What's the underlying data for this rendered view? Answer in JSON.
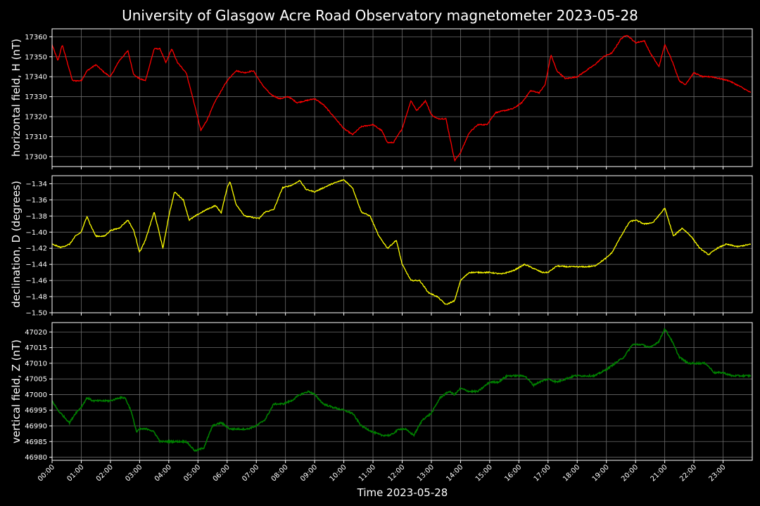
{
  "figure": {
    "title": "University of Glasgow Acre Road Observatory magnetometer 2023-05-28",
    "background": "#000000",
    "text_color": "#ffffff",
    "grid_color": "#6a6a6a"
  },
  "chart_data": [
    {
      "type": "line",
      "id": "h",
      "ylabel": "horizontal field, H (nT)",
      "color": "#ff0000",
      "ylim": [
        17295,
        17364
      ],
      "yticks": [
        17300,
        17310,
        17320,
        17330,
        17340,
        17350,
        17360
      ],
      "ytick_labels": [
        "17300",
        "17310",
        "17320",
        "17330",
        "17340",
        "17350",
        "17360"
      ],
      "x_hours": [
        0,
        0.2,
        0.35,
        0.7,
        1.0,
        1.2,
        1.5,
        1.8,
        2.0,
        2.3,
        2.6,
        2.8,
        3.0,
        3.2,
        3.5,
        3.7,
        3.9,
        4.1,
        4.3,
        4.6,
        4.9,
        5.1,
        5.3,
        5.6,
        6.0,
        6.3,
        6.6,
        6.9,
        7.2,
        7.5,
        7.8,
        8.1,
        8.4,
        8.7,
        9.0,
        9.3,
        9.6,
        10.0,
        10.3,
        10.6,
        11.0,
        11.3,
        11.5,
        11.7,
        12.0,
        12.3,
        12.5,
        12.8,
        13.0,
        13.2,
        13.5,
        13.8,
        14.0,
        14.3,
        14.6,
        14.9,
        15.2,
        15.5,
        15.8,
        16.1,
        16.4,
        16.7,
        16.9,
        17.1,
        17.3,
        17.6,
        18.0,
        18.3,
        18.6,
        18.9,
        19.2,
        19.5,
        19.7,
        20.0,
        20.3,
        20.5,
        20.8,
        21.0,
        21.2,
        21.5,
        21.7,
        22.0,
        22.3,
        22.6,
        22.9,
        23.2,
        23.6,
        23.95
      ],
      "values": [
        17356,
        17348,
        17356,
        17338,
        17338,
        17343,
        17346,
        17342,
        17340,
        17348,
        17353,
        17341,
        17339,
        17338,
        17354,
        17354,
        17347,
        17354,
        17347,
        17342,
        17325,
        17313,
        17318,
        17328,
        17338,
        17343,
        17342,
        17343,
        17336,
        17331,
        17329,
        17330,
        17327,
        17328,
        17329,
        17326,
        17321,
        17314,
        17311,
        17315,
        17316,
        17313,
        17307,
        17307,
        17314,
        17328,
        17323,
        17328,
        17321,
        17319,
        17319,
        17298,
        17302,
        17312,
        17316,
        17316,
        17322,
        17323,
        17324,
        17327,
        17333,
        17332,
        17336,
        17351,
        17343,
        17339,
        17340,
        17343,
        17346,
        17350,
        17352,
        17359,
        17361,
        17357,
        17358,
        17352,
        17345,
        17356,
        17350,
        17338,
        17336,
        17342,
        17340,
        17340,
        17339,
        17338,
        17335,
        17332
      ]
    },
    {
      "type": "line",
      "id": "d",
      "ylabel": "declination, D (degrees)",
      "color": "#ffff00",
      "ylim": [
        -1.5,
        -1.33
      ],
      "yticks": [
        -1.5,
        -1.48,
        -1.46,
        -1.44,
        -1.42,
        -1.4,
        -1.38,
        -1.36,
        -1.34
      ],
      "ytick_labels": [
        "−1.50",
        "−1.48",
        "−1.46",
        "−1.44",
        "−1.42",
        "−1.40",
        "−1.38",
        "−1.36",
        "−1.34"
      ],
      "x_hours": [
        0,
        0.3,
        0.6,
        0.8,
        1.0,
        1.2,
        1.3,
        1.5,
        1.8,
        2.0,
        2.3,
        2.6,
        2.8,
        3.0,
        3.2,
        3.5,
        3.6,
        3.8,
        4.0,
        4.2,
        4.5,
        4.7,
        5.0,
        5.3,
        5.6,
        5.8,
        6.0,
        6.1,
        6.3,
        6.6,
        6.9,
        7.1,
        7.3,
        7.6,
        7.9,
        8.2,
        8.5,
        8.7,
        9.0,
        9.3,
        9.6,
        10.0,
        10.3,
        10.6,
        10.9,
        11.2,
        11.5,
        11.8,
        12.0,
        12.3,
        12.6,
        12.9,
        13.2,
        13.5,
        13.8,
        14.0,
        14.3,
        14.6,
        15.0,
        15.4,
        15.8,
        16.2,
        16.5,
        16.8,
        17.0,
        17.3,
        17.7,
        18.0,
        18.3,
        18.6,
        19.0,
        19.2,
        19.5,
        19.8,
        20.0,
        20.3,
        20.6,
        20.9,
        21.0,
        21.3,
        21.6,
        21.9,
        22.2,
        22.5,
        22.8,
        23.1,
        23.5,
        23.95
      ],
      "values": [
        -1.415,
        -1.419,
        -1.415,
        -1.405,
        -1.4,
        -1.38,
        -1.39,
        -1.405,
        -1.405,
        -1.398,
        -1.395,
        -1.385,
        -1.398,
        -1.425,
        -1.41,
        -1.375,
        -1.39,
        -1.42,
        -1.38,
        -1.35,
        -1.36,
        -1.385,
        -1.378,
        -1.372,
        -1.367,
        -1.376,
        -1.345,
        -1.337,
        -1.365,
        -1.38,
        -1.382,
        -1.383,
        -1.375,
        -1.372,
        -1.345,
        -1.342,
        -1.336,
        -1.347,
        -1.35,
        -1.345,
        -1.34,
        -1.335,
        -1.345,
        -1.375,
        -1.38,
        -1.405,
        -1.42,
        -1.41,
        -1.44,
        -1.46,
        -1.46,
        -1.475,
        -1.48,
        -1.49,
        -1.485,
        -1.46,
        -1.45,
        -1.45,
        -1.45,
        -1.452,
        -1.448,
        -1.44,
        -1.445,
        -1.45,
        -1.45,
        -1.442,
        -1.443,
        -1.443,
        -1.443,
        -1.442,
        -1.432,
        -1.425,
        -1.405,
        -1.387,
        -1.385,
        -1.39,
        -1.388,
        -1.375,
        -1.37,
        -1.405,
        -1.395,
        -1.405,
        -1.42,
        -1.428,
        -1.42,
        -1.415,
        -1.418,
        -1.415
      ]
    },
    {
      "type": "line",
      "id": "z",
      "ylabel": "vertical field, Z (nT)",
      "color": "#008000",
      "ylim": [
        46979,
        47023
      ],
      "yticks": [
        46980,
        46985,
        46990,
        46995,
        47000,
        47005,
        47010,
        47015,
        47020
      ],
      "ytick_labels": [
        "46980",
        "46985",
        "46990",
        "46995",
        "47000",
        "47005",
        "47010",
        "47015",
        "47020"
      ],
      "x_hours": [
        0,
        0.2,
        0.4,
        0.6,
        0.8,
        1.0,
        1.2,
        1.4,
        1.7,
        2.0,
        2.3,
        2.5,
        2.7,
        2.9,
        3.0,
        3.3,
        3.5,
        3.7,
        4.0,
        4.3,
        4.6,
        4.9,
        5.2,
        5.5,
        5.8,
        6.1,
        6.4,
        6.7,
        7.0,
        7.3,
        7.6,
        7.9,
        8.2,
        8.5,
        8.8,
        9.0,
        9.3,
        9.6,
        10.0,
        10.3,
        10.6,
        11.0,
        11.3,
        11.6,
        11.9,
        12.1,
        12.4,
        12.7,
        13.0,
        13.3,
        13.6,
        13.8,
        14.0,
        14.3,
        14.6,
        15.0,
        15.3,
        15.6,
        15.9,
        16.2,
        16.5,
        16.7,
        17.0,
        17.3,
        17.6,
        17.9,
        18.2,
        18.6,
        19.0,
        19.3,
        19.6,
        19.9,
        20.2,
        20.5,
        20.8,
        21.0,
        21.2,
        21.5,
        21.8,
        22.1,
        22.4,
        22.7,
        23.0,
        23.3,
        23.6,
        23.95
      ],
      "values": [
        46998,
        46995,
        46993,
        46991,
        46994,
        46996,
        46999,
        46998,
        46998,
        46998,
        46999,
        46999,
        46995,
        46988,
        46989,
        46989,
        46988,
        46985,
        46985,
        46985,
        46985,
        46982,
        46983,
        46990,
        46991,
        46989,
        46989,
        46989,
        46990,
        46992,
        46997,
        46997,
        46998,
        47000,
        47001,
        47000,
        46997,
        46996,
        46995,
        46994,
        46990,
        46988,
        46987,
        46987,
        46989,
        46989,
        46987,
        46992,
        46994,
        46999,
        47001,
        47000,
        47002,
        47001,
        47001,
        47004,
        47004,
        47006,
        47006,
        47006,
        47003,
        47004,
        47005,
        47004,
        47005,
        47006,
        47006,
        47006,
        47008,
        47010,
        47012,
        47016,
        47016,
        47015,
        47017,
        47021,
        47018,
        47012,
        47010,
        47010,
        47010,
        47007,
        47007,
        47006,
        47006,
        47006
      ]
    }
  ],
  "x_axis": {
    "label": "Time 2023-05-28",
    "xlim_hours": [
      0,
      24
    ],
    "tick_hours": [
      0,
      1,
      2,
      3,
      4,
      5,
      6,
      7,
      8,
      9,
      10,
      11,
      12,
      13,
      14,
      15,
      16,
      17,
      18,
      19,
      20,
      21,
      22,
      23
    ],
    "tick_labels": [
      "00:00",
      "01:00",
      "02:00",
      "03:00",
      "04:00",
      "05:00",
      "06:00",
      "07:00",
      "08:00",
      "09:00",
      "10:00",
      "11:00",
      "12:00",
      "13:00",
      "14:00",
      "15:00",
      "16:00",
      "17:00",
      "18:00",
      "19:00",
      "20:00",
      "21:00",
      "22:00",
      "23:00"
    ],
    "grid": true
  }
}
